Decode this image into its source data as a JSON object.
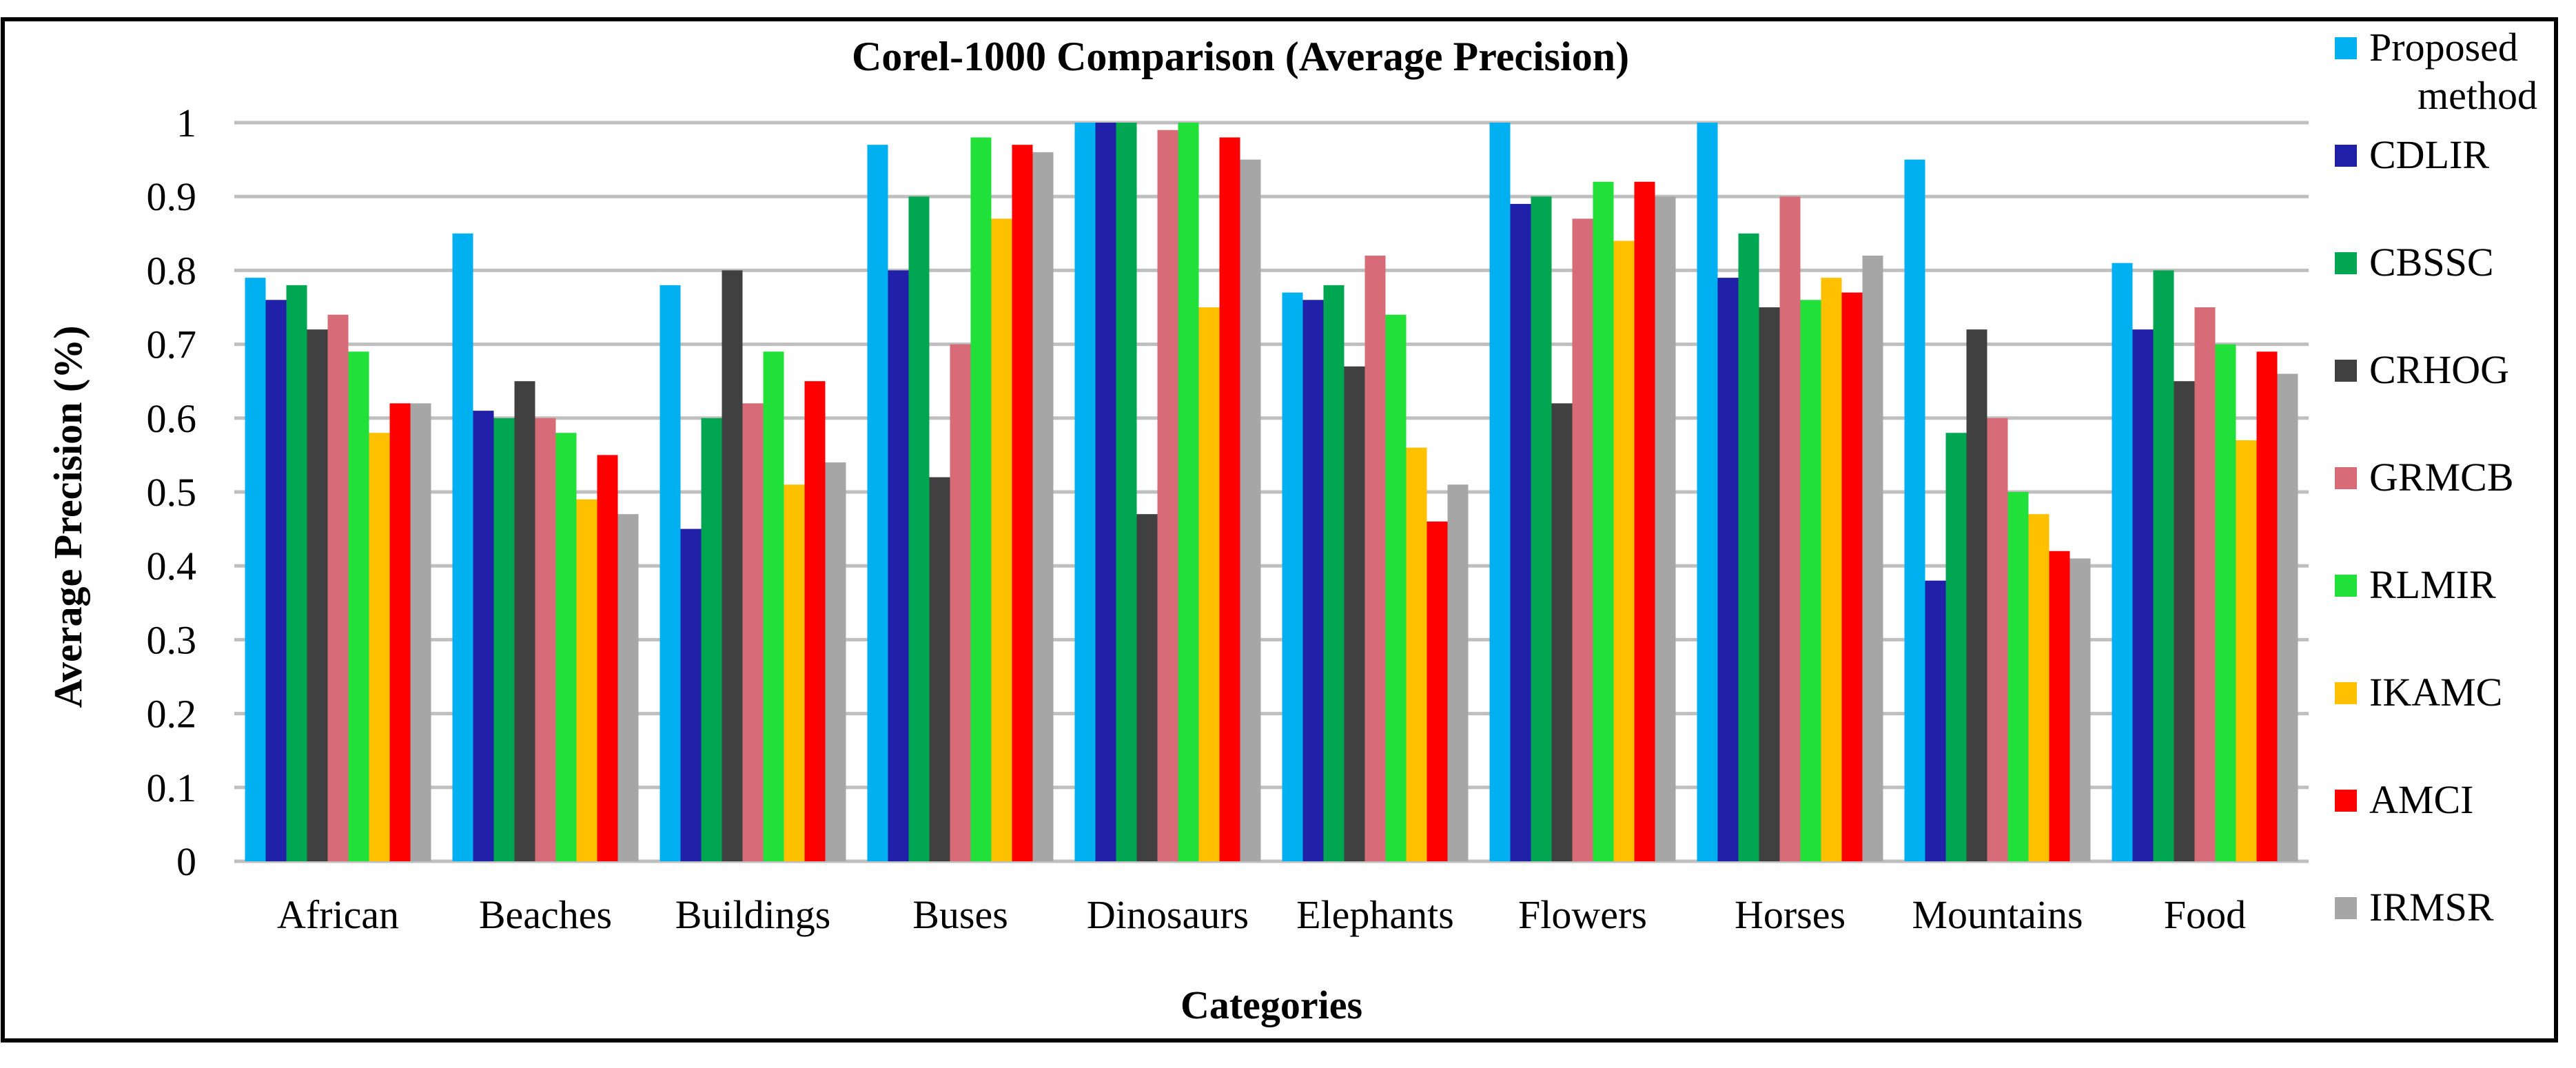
{
  "chart_data": {
    "type": "bar",
    "title": "Corel-1000 Comparison (Average Precision)",
    "xlabel": "Categories",
    "ylabel": "Average Precision (%)",
    "ylim": [
      0,
      1
    ],
    "yticks": [
      0,
      0.1,
      0.2,
      0.3,
      0.4,
      0.5,
      0.6,
      0.7,
      0.8,
      0.9,
      1
    ],
    "ytick_labels": [
      "0",
      "0.1",
      "0.2",
      "0.3",
      "0.4",
      "0.5",
      "0.6",
      "0.7",
      "0.8",
      "0.9",
      "1"
    ],
    "grid": true,
    "legend_position": "right",
    "categories": [
      "African",
      "Beaches",
      "Buildings",
      "Buses",
      "Dinosaurs",
      "Elephants",
      "Flowers",
      "Horses",
      "Mountains",
      "Food"
    ],
    "series": [
      {
        "name": "Proposed method",
        "label_lines": [
          "Proposed",
          "method"
        ],
        "color": "#00b0f0",
        "values": [
          0.79,
          0.85,
          0.78,
          0.97,
          1.0,
          0.77,
          1.0,
          1.0,
          0.95,
          0.81
        ]
      },
      {
        "name": "CDLIR",
        "label_lines": [
          "CDLIR"
        ],
        "color": "#2020a8",
        "values": [
          0.76,
          0.61,
          0.45,
          0.8,
          1.0,
          0.76,
          0.89,
          0.79,
          0.38,
          0.72
        ]
      },
      {
        "name": "CBSSC",
        "label_lines": [
          "CBSSC"
        ],
        "color": "#00a651",
        "values": [
          0.78,
          0.6,
          0.6,
          0.9,
          1.0,
          0.78,
          0.9,
          0.85,
          0.58,
          0.8
        ]
      },
      {
        "name": "CRHOG",
        "label_lines": [
          "CRHOG"
        ],
        "color": "#404040",
        "values": [
          0.72,
          0.65,
          0.8,
          0.52,
          0.47,
          0.67,
          0.62,
          0.75,
          0.72,
          0.65
        ]
      },
      {
        "name": "GRMCB",
        "label_lines": [
          "GRMCB"
        ],
        "color": "#d76b78",
        "values": [
          0.74,
          0.6,
          0.62,
          0.7,
          0.99,
          0.82,
          0.87,
          0.9,
          0.6,
          0.75
        ]
      },
      {
        "name": "RLMIR",
        "label_lines": [
          "RLMIR"
        ],
        "color": "#22e03a",
        "values": [
          0.69,
          0.58,
          0.69,
          0.98,
          1.0,
          0.74,
          0.92,
          0.76,
          0.5,
          0.7
        ]
      },
      {
        "name": "IKAMC",
        "label_lines": [
          "IKAMC"
        ],
        "color": "#ffc000",
        "values": [
          0.58,
          0.49,
          0.51,
          0.87,
          0.75,
          0.56,
          0.84,
          0.79,
          0.47,
          0.57
        ]
      },
      {
        "name": "AMCI",
        "label_lines": [
          "AMCI"
        ],
        "color": "#ff0000",
        "values": [
          0.62,
          0.55,
          0.65,
          0.97,
          0.98,
          0.46,
          0.92,
          0.77,
          0.42,
          0.69
        ]
      },
      {
        "name": "IRMSR",
        "label_lines": [
          "IRMSR"
        ],
        "color": "#a6a6a6",
        "values": [
          0.62,
          0.47,
          0.54,
          0.96,
          0.95,
          0.51,
          0.9,
          0.82,
          0.41,
          0.66
        ]
      }
    ]
  }
}
